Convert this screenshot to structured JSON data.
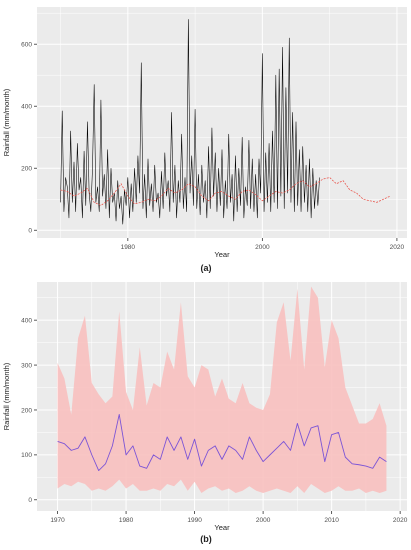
{
  "chart_data": [
    {
      "type": "line",
      "panel_label": "(a)",
      "title": "",
      "xlabel": "Year",
      "ylabel": "Rainfall (mm/month)",
      "xlim": [
        1966.5,
        2021.5
      ],
      "ylim": [
        -25,
        720
      ],
      "x_ticks": [
        1980,
        2000,
        2020
      ],
      "y_ticks": [
        0,
        200,
        400,
        600
      ],
      "grid": true,
      "legend": "none",
      "colors": {
        "series": "#000000",
        "mean": "#e8463c",
        "panel": "#ebebeb",
        "grid": "#ffffff"
      },
      "series": [
        {
          "style": "monthly",
          "x_start": 1970,
          "x_step": 0.25,
          "values": [
            90,
            385,
            60,
            170,
            140,
            40,
            320,
            90,
            220,
            60,
            280,
            130,
            170,
            40,
            255,
            80,
            350,
            120,
            60,
            200,
            470,
            90,
            140,
            60,
            420,
            110,
            180,
            70,
            260,
            40,
            200,
            90,
            120,
            30,
            160,
            70,
            110,
            20,
            130,
            80,
            170,
            40,
            150,
            60,
            200,
            90,
            240,
            120,
            540,
            70,
            180,
            40,
            230,
            80,
            150,
            60,
            210,
            90,
            120,
            40,
            190,
            70,
            250,
            110,
            160,
            60,
            380,
            90,
            210,
            40,
            160,
            90,
            310,
            70,
            170,
            60,
            680,
            120,
            240,
            80,
            390,
            70,
            180,
            50,
            210,
            90,
            160,
            40,
            270,
            70,
            330,
            110,
            250,
            60,
            200,
            80,
            260,
            40,
            160,
            70,
            310,
            90,
            180,
            30,
            240,
            60,
            200,
            80,
            300,
            40,
            140,
            80,
            290,
            70,
            230,
            60,
            180,
            40,
            230,
            120,
            570,
            60,
            250,
            90,
            280,
            60,
            320,
            90,
            500,
            70,
            520,
            110,
            590,
            70,
            460,
            120,
            620,
            90,
            380,
            60,
            350,
            80,
            260,
            60,
            270,
            90,
            210,
            60,
            230,
            40,
            200,
            70,
            160,
            80,
            170
          ]
        },
        {
          "style": "moving-average",
          "x_start": 1970,
          "x_step": 1,
          "values": [
            130,
            125,
            110,
            120,
            135,
            90,
            80,
            95,
            120,
            150,
            110,
            85,
            90,
            100,
            95,
            110,
            135,
            120,
            130,
            150,
            140,
            110,
            95,
            120,
            125,
            110,
            100,
            125,
            130,
            115,
            95,
            110,
            125,
            120,
            130,
            150,
            160,
            140,
            150,
            165,
            170,
            150,
            160,
            130,
            120,
            100,
            95,
            90,
            100,
            110
          ]
        }
      ]
    },
    {
      "type": "area",
      "panel_label": "(b)",
      "title": "",
      "xlabel": "Year",
      "ylabel": "Rainfall (mm/month)",
      "xlim": [
        1967,
        2021
      ],
      "ylim": [
        -25,
        485
      ],
      "x_ticks": [
        1970,
        1980,
        1990,
        2000,
        2010,
        2020
      ],
      "y_ticks": [
        0,
        100,
        200,
        300,
        400
      ],
      "grid": true,
      "legend": "none",
      "colors": {
        "band": "#f8c0bf",
        "mean": "#7c55d6",
        "panel": "#ebebeb",
        "grid": "#ffffff"
      },
      "x": [
        1970,
        1971,
        1972,
        1973,
        1974,
        1975,
        1976,
        1977,
        1978,
        1979,
        1980,
        1981,
        1982,
        1983,
        1984,
        1985,
        1986,
        1987,
        1988,
        1989,
        1990,
        1991,
        1992,
        1993,
        1994,
        1995,
        1996,
        1997,
        1998,
        1999,
        2000,
        2001,
        2002,
        2003,
        2004,
        2005,
        2006,
        2007,
        2008,
        2009,
        2010,
        2011,
        2012,
        2013,
        2014,
        2015,
        2016,
        2017,
        2018
      ],
      "series": [
        {
          "style": "max",
          "values": [
            305,
            270,
            190,
            360,
            410,
            260,
            235,
            215,
            230,
            420,
            240,
            200,
            340,
            210,
            260,
            250,
            330,
            290,
            440,
            275,
            250,
            300,
            290,
            230,
            270,
            225,
            215,
            260,
            215,
            205,
            200,
            235,
            395,
            440,
            310,
            470,
            290,
            475,
            450,
            295,
            400,
            360,
            250,
            210,
            170,
            170,
            180,
            215,
            165
          ]
        },
        {
          "style": "mean",
          "values": [
            130,
            125,
            110,
            115,
            140,
            100,
            65,
            80,
            120,
            190,
            100,
            120,
            75,
            70,
            100,
            90,
            140,
            110,
            140,
            90,
            135,
            75,
            110,
            120,
            90,
            120,
            110,
            90,
            140,
            110,
            85,
            100,
            115,
            130,
            110,
            170,
            120,
            160,
            165,
            85,
            145,
            150,
            95,
            80,
            78,
            75,
            70,
            95,
            85
          ]
        },
        {
          "style": "min",
          "values": [
            25,
            35,
            30,
            40,
            35,
            20,
            25,
            20,
            30,
            45,
            25,
            35,
            20,
            20,
            25,
            20,
            35,
            30,
            45,
            20,
            40,
            15,
            25,
            30,
            20,
            25,
            15,
            20,
            30,
            20,
            15,
            20,
            25,
            20,
            15,
            30,
            15,
            35,
            25,
            15,
            20,
            30,
            20,
            20,
            25,
            15,
            20,
            15,
            20
          ]
        }
      ]
    }
  ],
  "captions": {
    "a": "(a)",
    "b": "(b)"
  }
}
